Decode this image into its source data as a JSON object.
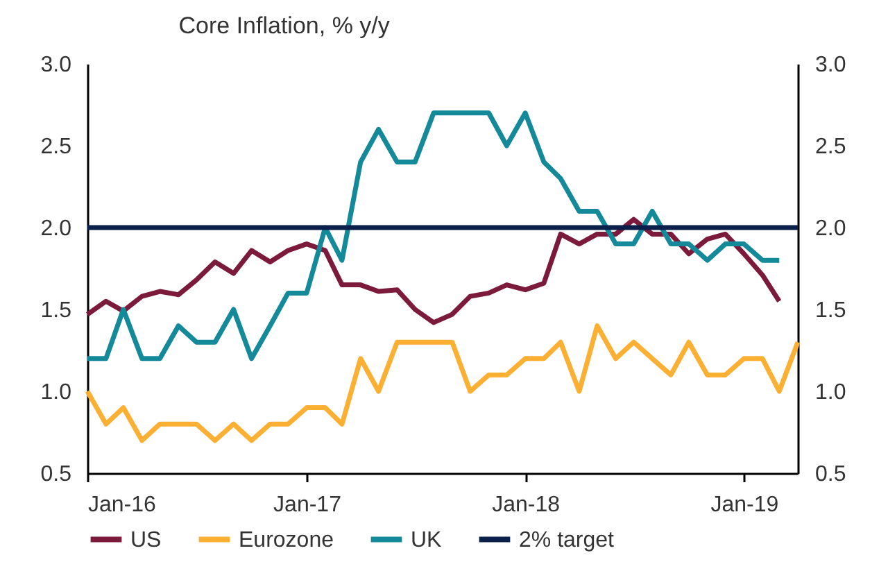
{
  "chart_data": {
    "type": "line",
    "title": "Core Inflation, % y/y",
    "x": [
      "2016-01",
      "2016-02",
      "2016-03",
      "2016-04",
      "2016-05",
      "2016-06",
      "2016-07",
      "2016-08",
      "2016-09",
      "2016-10",
      "2016-11",
      "2016-12",
      "2017-01",
      "2017-02",
      "2017-03",
      "2017-04",
      "2017-05",
      "2017-06",
      "2017-07",
      "2017-08",
      "2017-09",
      "2017-10",
      "2017-11",
      "2017-12",
      "2018-01",
      "2018-02",
      "2018-03",
      "2018-04",
      "2018-05",
      "2018-06",
      "2018-07",
      "2018-08",
      "2018-09",
      "2018-10",
      "2018-11",
      "2018-12",
      "2019-01",
      "2019-02",
      "2019-03",
      "2019-04"
    ],
    "series": [
      {
        "name": "US",
        "color": "#7b1a3a",
        "values": [
          1.47,
          1.55,
          1.49,
          1.58,
          1.61,
          1.59,
          1.68,
          1.79,
          1.72,
          1.86,
          1.79,
          1.86,
          1.9,
          1.86,
          1.65,
          1.65,
          1.61,
          1.62,
          1.5,
          1.42,
          1.47,
          1.58,
          1.6,
          1.65,
          1.62,
          1.66,
          1.96,
          1.9,
          1.96,
          1.96,
          2.05,
          1.96,
          1.96,
          1.84,
          1.93,
          1.96,
          1.84,
          1.71,
          1.55,
          null
        ]
      },
      {
        "name": "Eurozone",
        "color": "#fbb034",
        "values": [
          1.0,
          0.8,
          0.9,
          0.7,
          0.8,
          0.8,
          0.8,
          0.7,
          0.8,
          0.7,
          0.8,
          0.8,
          0.9,
          0.9,
          0.8,
          1.2,
          1.0,
          1.3,
          1.3,
          1.3,
          1.3,
          1.0,
          1.1,
          1.1,
          1.2,
          1.2,
          1.3,
          1.0,
          1.4,
          1.2,
          1.3,
          1.2,
          1.1,
          1.3,
          1.1,
          1.1,
          1.2,
          1.2,
          1.0,
          1.3
        ]
      },
      {
        "name": "UK",
        "color": "#13899a",
        "values": [
          1.2,
          1.2,
          1.5,
          1.2,
          1.2,
          1.4,
          1.3,
          1.3,
          1.5,
          1.2,
          1.4,
          1.6,
          1.6,
          2.0,
          1.8,
          2.4,
          2.6,
          2.4,
          2.4,
          2.7,
          2.7,
          2.7,
          2.7,
          2.5,
          2.7,
          2.4,
          2.3,
          2.1,
          2.1,
          1.9,
          1.9,
          2.1,
          1.9,
          1.9,
          1.8,
          1.9,
          1.9,
          1.8,
          1.8,
          null
        ]
      }
    ],
    "ref_lines": [
      {
        "axis": "y",
        "value": 2.0,
        "label": "2% target",
        "color": "#0b1f4b"
      }
    ],
    "xlim": [
      "2016-01",
      "2019-04"
    ],
    "xticks": [
      {
        "value": "2016-01",
        "label": "Jan-16"
      },
      {
        "value": "2017-01",
        "label": "Jan-17"
      },
      {
        "value": "2018-01",
        "label": "Jan-18"
      },
      {
        "value": "2019-01",
        "label": "Jan-19"
      }
    ],
    "ylim": [
      0.5,
      3.0
    ],
    "yticks": [
      0.5,
      {
        "value": 1,
        "label": "1.0"
      },
      1.5,
      {
        "value": 2,
        "label": "2.0"
      },
      2.5,
      {
        "value": 3,
        "label": "3.0"
      }
    ],
    "y2lim": [
      0.5,
      3.0
    ],
    "y2ticks": [
      0.5,
      {
        "value": 1,
        "label": "1.0"
      },
      1.5,
      {
        "value": 2,
        "label": "2.0"
      },
      2.5,
      {
        "value": 3,
        "label": "3.0"
      }
    ],
    "legend": "bottom",
    "grid": false,
    "marker": "none",
    "line_style": "solid"
  }
}
